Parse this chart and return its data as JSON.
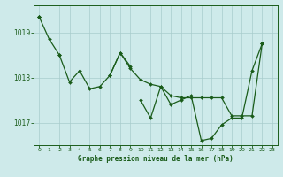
{
  "title": "Graphe pression niveau de la mer (hPa)",
  "background_color": "#ceeaea",
  "grid_color": "#a8cccc",
  "line_color": "#1a5c1a",
  "x_values": [
    0,
    1,
    2,
    3,
    4,
    5,
    6,
    7,
    8,
    9,
    10,
    11,
    12,
    13,
    14,
    15,
    16,
    17,
    18,
    19,
    20,
    21,
    22,
    23
  ],
  "series": [
    [
      1019.35,
      1018.85,
      1018.5,
      1017.9,
      1018.15,
      1017.75,
      1017.8,
      1018.05,
      1018.55,
      1018.2,
      1017.95,
      1017.85,
      1017.8,
      1017.6,
      1017.55,
      1017.55,
      1017.55,
      1017.55,
      1017.55,
      1017.15,
      1017.15,
      1017.15,
      1018.75,
      null
    ],
    [
      1019.35,
      null,
      null,
      null,
      null,
      null,
      null,
      null,
      null,
      null,
      1017.5,
      1017.1,
      1017.8,
      1017.4,
      1017.5,
      1017.6,
      1016.6,
      1016.65,
      1016.95,
      1017.1,
      1017.1,
      1018.15,
      1018.75,
      null
    ],
    [
      1019.35,
      null,
      null,
      null,
      null,
      null,
      null,
      null,
      null,
      null,
      null,
      null,
      null,
      null,
      null,
      null,
      null,
      null,
      null,
      null,
      null,
      null,
      1018.75,
      null
    ],
    [
      null,
      null,
      1018.5,
      null,
      null,
      null,
      null,
      1018.05,
      1018.55,
      1018.25,
      null,
      null,
      null,
      null,
      null,
      null,
      null,
      null,
      null,
      null,
      null,
      null,
      null,
      null
    ]
  ],
  "ylim": [
    1016.5,
    1019.6
  ],
  "yticks": [
    1017.0,
    1018.0,
    1019.0
  ],
  "xlim": [
    -0.5,
    23.5
  ],
  "xticks": [
    0,
    1,
    2,
    3,
    4,
    5,
    6,
    7,
    8,
    9,
    10,
    11,
    12,
    13,
    14,
    15,
    16,
    17,
    18,
    19,
    20,
    21,
    22,
    23
  ],
  "lw": 0.9,
  "ms": 2.0,
  "xlabel_fontsize": 5.5,
  "ytick_fontsize": 5.5,
  "xtick_fontsize": 4.5
}
